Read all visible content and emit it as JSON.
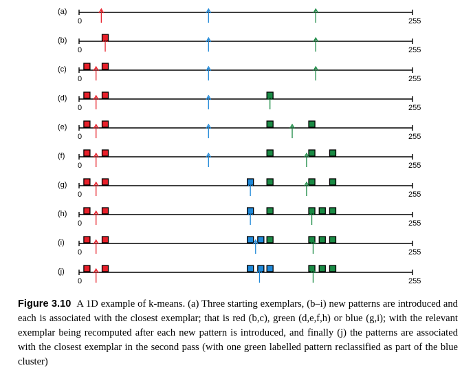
{
  "figure": {
    "axis_min": 0,
    "axis_max": 255,
    "axis_min_label": "0",
    "axis_max_label": "255",
    "colors": {
      "red": "#e8202a",
      "green": "#1a8a44",
      "blue": "#1e88d8",
      "line": "#000000"
    },
    "rows": [
      {
        "label": "(a)",
        "arrows": [
          {
            "x": 17,
            "color": "red"
          },
          {
            "x": 99,
            "color": "blue"
          },
          {
            "x": 181,
            "color": "green"
          }
        ],
        "patterns": []
      },
      {
        "label": "(b)",
        "arrows": [
          {
            "x": 20,
            "color": "red"
          },
          {
            "x": 99,
            "color": "blue"
          },
          {
            "x": 181,
            "color": "green"
          }
        ],
        "patterns": [
          {
            "x": 20,
            "color": "red"
          }
        ]
      },
      {
        "label": "(c)",
        "arrows": [
          {
            "x": 13,
            "color": "red"
          },
          {
            "x": 99,
            "color": "blue"
          },
          {
            "x": 181,
            "color": "green"
          }
        ],
        "patterns": [
          {
            "x": 6,
            "color": "red"
          },
          {
            "x": 20,
            "color": "red"
          }
        ]
      },
      {
        "label": "(d)",
        "arrows": [
          {
            "x": 13,
            "color": "red"
          },
          {
            "x": 99,
            "color": "blue"
          },
          {
            "x": 146,
            "color": "green"
          }
        ],
        "patterns": [
          {
            "x": 6,
            "color": "red"
          },
          {
            "x": 20,
            "color": "red"
          },
          {
            "x": 146,
            "color": "green"
          }
        ]
      },
      {
        "label": "(e)",
        "arrows": [
          {
            "x": 13,
            "color": "red"
          },
          {
            "x": 99,
            "color": "blue"
          },
          {
            "x": 163,
            "color": "green"
          }
        ],
        "patterns": [
          {
            "x": 6,
            "color": "red"
          },
          {
            "x": 20,
            "color": "red"
          },
          {
            "x": 146,
            "color": "green"
          },
          {
            "x": 178,
            "color": "green"
          }
        ]
      },
      {
        "label": "(f)",
        "arrows": [
          {
            "x": 13,
            "color": "red"
          },
          {
            "x": 99,
            "color": "blue"
          },
          {
            "x": 174,
            "color": "green"
          }
        ],
        "patterns": [
          {
            "x": 6,
            "color": "red"
          },
          {
            "x": 20,
            "color": "red"
          },
          {
            "x": 146,
            "color": "green"
          },
          {
            "x": 178,
            "color": "green"
          },
          {
            "x": 194,
            "color": "green"
          }
        ]
      },
      {
        "label": "(g)",
        "arrows": [
          {
            "x": 13,
            "color": "red"
          },
          {
            "x": 131,
            "color": "blue"
          },
          {
            "x": 174,
            "color": "green"
          }
        ],
        "patterns": [
          {
            "x": 6,
            "color": "red"
          },
          {
            "x": 20,
            "color": "red"
          },
          {
            "x": 131,
            "color": "blue"
          },
          {
            "x": 146,
            "color": "green"
          },
          {
            "x": 178,
            "color": "green"
          },
          {
            "x": 194,
            "color": "green"
          }
        ]
      },
      {
        "label": "(h)",
        "arrows": [
          {
            "x": 13,
            "color": "red"
          },
          {
            "x": 131,
            "color": "blue"
          },
          {
            "x": 178,
            "color": "green"
          }
        ],
        "patterns": [
          {
            "x": 6,
            "color": "red"
          },
          {
            "x": 20,
            "color": "red"
          },
          {
            "x": 131,
            "color": "blue"
          },
          {
            "x": 146,
            "color": "green"
          },
          {
            "x": 178,
            "color": "green"
          },
          {
            "x": 186,
            "color": "green"
          },
          {
            "x": 194,
            "color": "green"
          }
        ]
      },
      {
        "label": "(i)",
        "arrows": [
          {
            "x": 13,
            "color": "red"
          },
          {
            "x": 135,
            "color": "blue"
          },
          {
            "x": 179,
            "color": "green"
          }
        ],
        "patterns": [
          {
            "x": 6,
            "color": "red"
          },
          {
            "x": 20,
            "color": "red"
          },
          {
            "x": 131,
            "color": "blue"
          },
          {
            "x": 139,
            "color": "blue"
          },
          {
            "x": 146,
            "color": "green"
          },
          {
            "x": 178,
            "color": "green"
          },
          {
            "x": 186,
            "color": "green"
          },
          {
            "x": 194,
            "color": "green"
          }
        ]
      },
      {
        "label": "(j)",
        "arrows": [
          {
            "x": 13,
            "color": "red"
          },
          {
            "x": 138,
            "color": "blue"
          },
          {
            "x": 179,
            "color": "green"
          }
        ],
        "patterns": [
          {
            "x": 6,
            "color": "red"
          },
          {
            "x": 20,
            "color": "red"
          },
          {
            "x": 131,
            "color": "blue"
          },
          {
            "x": 139,
            "color": "blue"
          },
          {
            "x": 146,
            "color": "blue"
          },
          {
            "x": 178,
            "color": "green"
          },
          {
            "x": 186,
            "color": "green"
          },
          {
            "x": 194,
            "color": "green"
          }
        ]
      }
    ]
  },
  "caption": {
    "number": "Figure 3.10",
    "text": "A 1D example of k-means. (a) Three starting exemplars, (b–i) new patterns are introduced and each is associated with the closest exemplar; that is red (b,c), green (d,e,f,h) or blue (g,i); with the relevant exemplar being recomputed after each new pattern is introduced, and finally (j) the patterns are associated with the closest exemplar in the second pass (with one green labelled pattern reclassified as part of the blue cluster)"
  }
}
